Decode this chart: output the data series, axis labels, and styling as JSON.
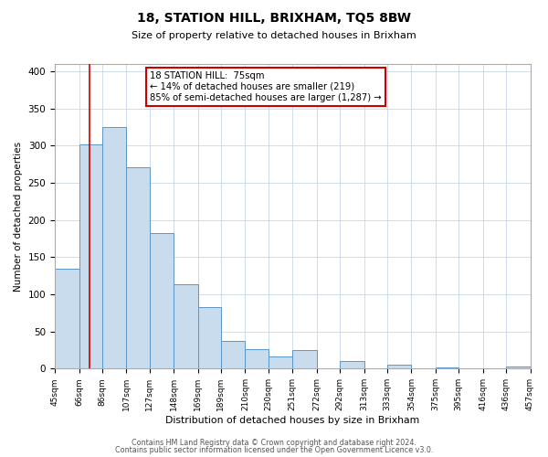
{
  "title": "18, STATION HILL, BRIXHAM, TQ5 8BW",
  "subtitle": "Size of property relative to detached houses in Brixham",
  "xlabel": "Distribution of detached houses by size in Brixham",
  "ylabel": "Number of detached properties",
  "bin_labels": [
    "45sqm",
    "66sqm",
    "86sqm",
    "107sqm",
    "127sqm",
    "148sqm",
    "169sqm",
    "189sqm",
    "210sqm",
    "230sqm",
    "251sqm",
    "272sqm",
    "292sqm",
    "313sqm",
    "333sqm",
    "354sqm",
    "375sqm",
    "395sqm",
    "416sqm",
    "436sqm",
    "457sqm"
  ],
  "bar_values": [
    135,
    302,
    325,
    271,
    182,
    113,
    83,
    37,
    26,
    16,
    25,
    0,
    10,
    0,
    5,
    0,
    2,
    0,
    0,
    3
  ],
  "bar_color": "#c9dcee",
  "bar_edge_color": "#5a96c8",
  "property_line_x": 75,
  "property_line_color": "#cc0000",
  "bin_edges": [
    45,
    66,
    86,
    107,
    127,
    148,
    169,
    189,
    210,
    230,
    251,
    272,
    292,
    313,
    333,
    354,
    375,
    395,
    416,
    436,
    457
  ],
  "annotation_line1": "18 STATION HILL:  75sqm",
  "annotation_line2": "← 14% of detached houses are smaller (219)",
  "annotation_line3": "85% of semi-detached houses are larger (1,287) →",
  "annotation_box_color": "#ffffff",
  "annotation_box_edge": "#cc0000",
  "ylim": [
    0,
    410
  ],
  "yticks": [
    0,
    50,
    100,
    150,
    200,
    250,
    300,
    350,
    400
  ],
  "footer_line1": "Contains HM Land Registry data © Crown copyright and database right 2024.",
  "footer_line2": "Contains public sector information licensed under the Open Government Licence v3.0.",
  "background_color": "#ffffff",
  "grid_color": "#c8d8e8"
}
